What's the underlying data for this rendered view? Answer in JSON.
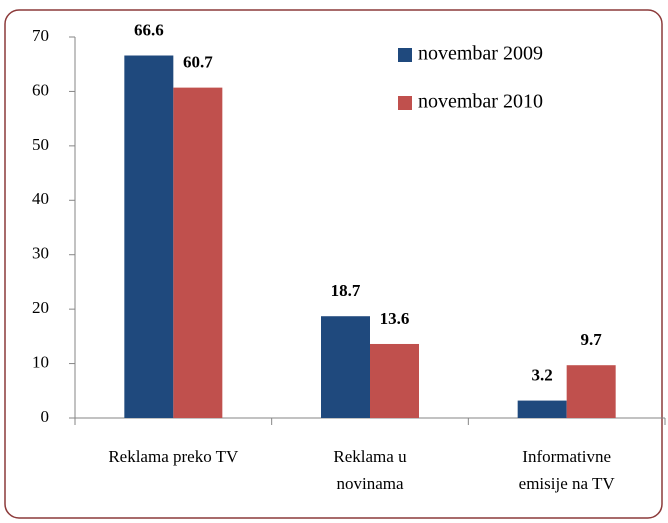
{
  "chart_data": {
    "type": "bar",
    "categories": [
      [
        "Reklama preko TV"
      ],
      [
        "Reklama u",
        "novinama"
      ],
      [
        "Informativne",
        "emisije na TV"
      ]
    ],
    "series": [
      {
        "name": "novembar 2009",
        "color": "#1f497d",
        "values": [
          66.6,
          18.7,
          3.2
        ]
      },
      {
        "name": "novembar 2010",
        "color": "#c0504d",
        "values": [
          60.7,
          13.6,
          9.7
        ]
      }
    ],
    "ylim": [
      0,
      70
    ],
    "yticks": [
      0,
      10,
      20,
      30,
      40,
      50,
      60,
      70
    ],
    "legend": "top-right"
  }
}
